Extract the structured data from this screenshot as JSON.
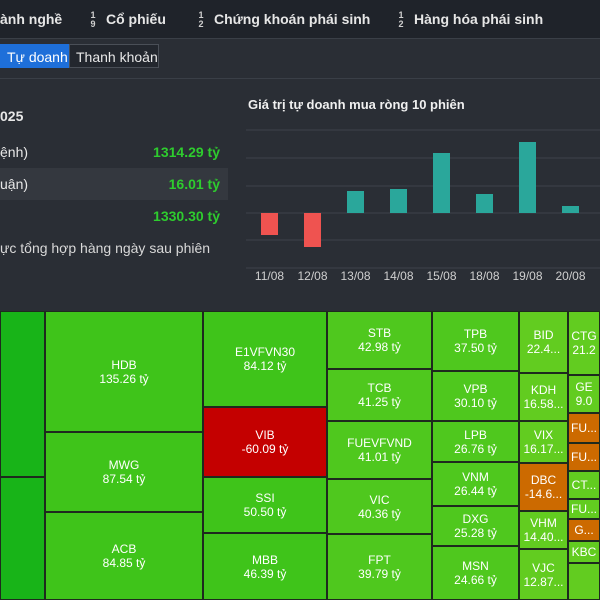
{
  "nav": {
    "items": [
      {
        "label": "ành nghề",
        "icon": ""
      },
      {
        "label": "Cổ phiếu",
        "icon": "sort-numeric-icon",
        "icon_top": "1",
        "icon_bottom": "9"
      },
      {
        "label": "Chứng khoán phái sinh",
        "icon": "sort-list-icon",
        "icon_top": "1",
        "icon_bottom": "2"
      },
      {
        "label": "Hàng hóa phái sinh",
        "icon": "sort-list-icon",
        "icon_top": "1",
        "icon_bottom": "2"
      }
    ]
  },
  "tabs": [
    {
      "label": "Tự doanh",
      "active": true
    },
    {
      "label": "Thanh khoản",
      "active": false
    }
  ],
  "summary": {
    "date": "025",
    "rows": [
      {
        "label": "ệnh)",
        "value": "1314.29 tỷ"
      },
      {
        "label": "uận)",
        "value": "16.01 tỷ"
      },
      {
        "label": "",
        "value": "1330.30 tỷ"
      }
    ],
    "note": "ực tổng hợp hàng ngày sau phiên"
  },
  "chart_data": {
    "type": "bar",
    "title": "Giá trị tự doanh mua ròng 10 phiên",
    "categories": [
      "11/08",
      "12/08",
      "13/08",
      "14/08",
      "15/08",
      "18/08",
      "19/08",
      "20/08"
    ],
    "values": [
      -220,
      -340,
      220,
      240,
      600,
      190,
      710,
      70
    ],
    "colors": {
      "positive": "#2aa79b",
      "negative": "#ef5350"
    },
    "grid": true
  },
  "heatmap": [
    {
      "symbol": "",
      "value": "",
      "color": "pos-strong"
    },
    {
      "symbol": "",
      "value": "",
      "color": "pos-strong"
    },
    {
      "symbol": "HDB",
      "value": "135.26 tỷ",
      "color": "pos"
    },
    {
      "symbol": "MWG",
      "value": "87.54 tỷ",
      "color": "pos"
    },
    {
      "symbol": "ACB",
      "value": "84.85 tỷ",
      "color": "pos"
    },
    {
      "symbol": "E1VFVN30",
      "value": "84.12 tỷ",
      "color": "pos"
    },
    {
      "symbol": "VIB",
      "value": "-60.09 tỷ",
      "color": "neg-strong"
    },
    {
      "symbol": "SSI",
      "value": "50.50 tỷ",
      "color": "pos"
    },
    {
      "symbol": "MBB",
      "value": "46.39 tỷ",
      "color": "pos"
    },
    {
      "symbol": "STB",
      "value": "42.98 tỷ",
      "color": "pos-mid"
    },
    {
      "symbol": "TCB",
      "value": "41.25 tỷ",
      "color": "pos-mid"
    },
    {
      "symbol": "FUEVFVND",
      "value": "41.01 tỷ",
      "color": "pos-mid"
    },
    {
      "symbol": "VIC",
      "value": "40.36 tỷ",
      "color": "pos-mid"
    },
    {
      "symbol": "FPT",
      "value": "39.79 tỷ",
      "color": "pos-mid"
    },
    {
      "symbol": "TPB",
      "value": "37.50 tỷ",
      "color": "pos-mid"
    },
    {
      "symbol": "VPB",
      "value": "30.10 tỷ",
      "color": "pos-mid"
    },
    {
      "symbol": "LPB",
      "value": "26.76 tỷ",
      "color": "pos-mid"
    },
    {
      "symbol": "VNM",
      "value": "26.44 tỷ",
      "color": "pos-mid"
    },
    {
      "symbol": "DXG",
      "value": "25.28 tỷ",
      "color": "pos-mid"
    },
    {
      "symbol": "MSN",
      "value": "24.66 tỷ",
      "color": "pos-mid"
    },
    {
      "symbol": "BID",
      "value": "22.4...",
      "color": "pos-light"
    },
    {
      "symbol": "KDH",
      "value": "16.58...",
      "color": "pos-light"
    },
    {
      "symbol": "VIX",
      "value": "16.17...",
      "color": "pos-light"
    },
    {
      "symbol": "DBC",
      "value": "-14.6...",
      "color": "neg-org"
    },
    {
      "symbol": "VHM",
      "value": "14.40...",
      "color": "pos-light"
    },
    {
      "symbol": "VJC",
      "value": "12.87...",
      "color": "pos-light"
    },
    {
      "symbol": "CTG",
      "value": "21.2",
      "color": "pos-light"
    },
    {
      "symbol": "GE",
      "value": "9.0",
      "color": "pos-light"
    },
    {
      "symbol": "FU...",
      "value": "",
      "color": "neg-org"
    },
    {
      "symbol": "FU...",
      "value": "",
      "color": "neg-org"
    },
    {
      "symbol": "CT...",
      "value": "",
      "color": "pos-light"
    },
    {
      "symbol": "FU...",
      "value": "",
      "color": "pos-light"
    },
    {
      "symbol": "G...",
      "value": "",
      "color": "neg-org"
    },
    {
      "symbol": "KBC",
      "value": "",
      "color": "pos-light"
    },
    {
      "symbol": "",
      "value": "",
      "color": "pos-light"
    }
  ]
}
